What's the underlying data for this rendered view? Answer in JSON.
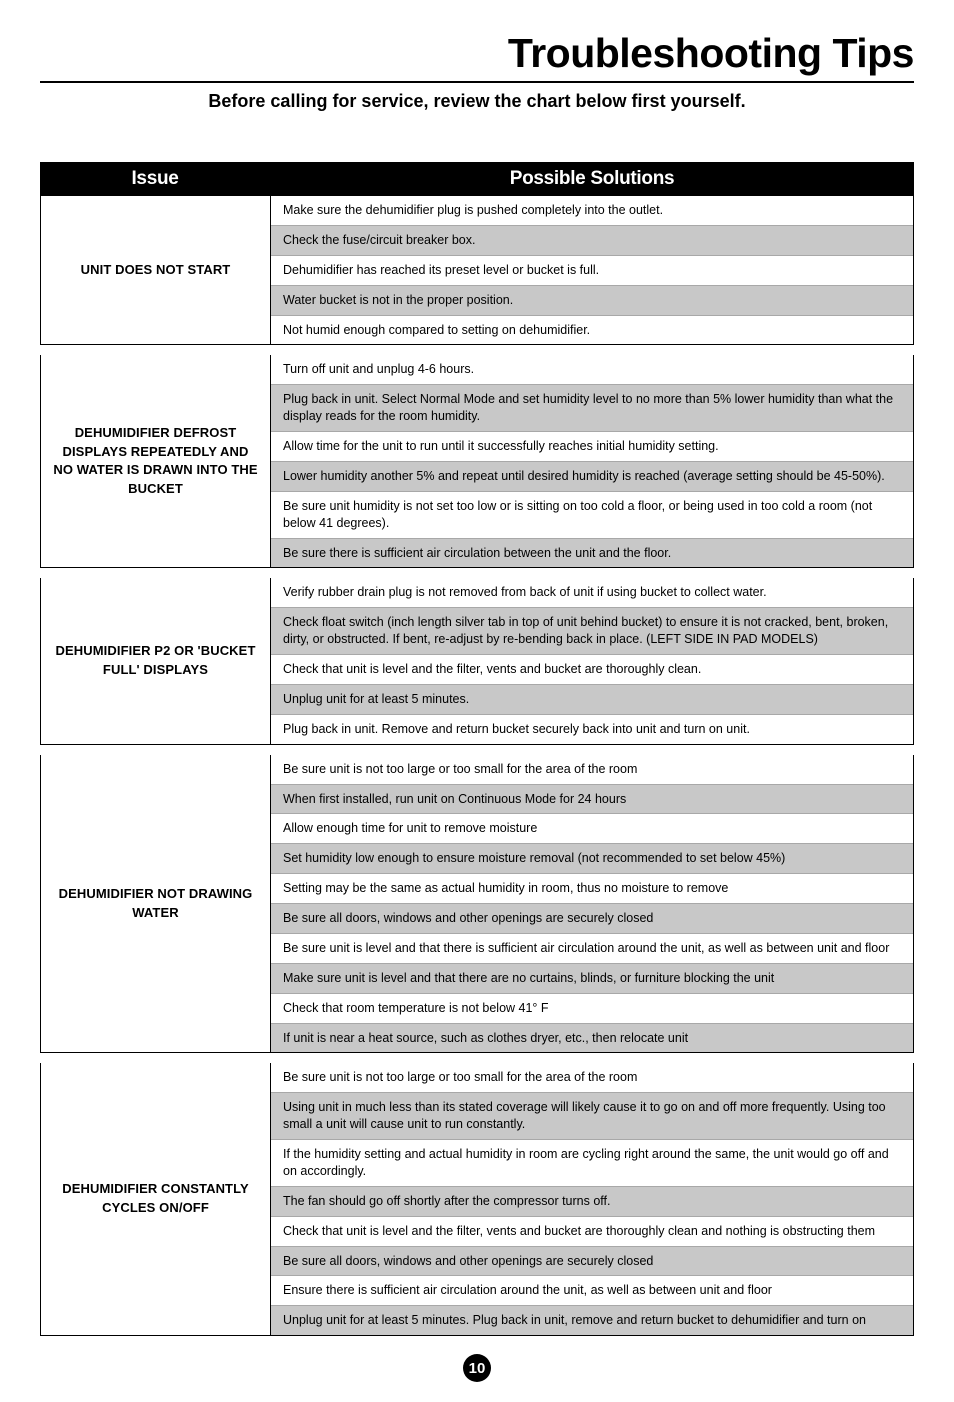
{
  "title": "Troubleshooting Tips",
  "subtitle": "Before calling for service, review the chart below first yourself.",
  "headers": {
    "issue": "Issue",
    "solutions": "Possible Solutions"
  },
  "page_number": "10",
  "colors": {
    "header_bg": "#000000",
    "header_text": "#ffffff",
    "row_alt_bg": "#c8c8c8",
    "border": "#000000",
    "row_border": "#a8a8a8"
  },
  "typography": {
    "title_fontsize": 41,
    "subtitle_fontsize": 18,
    "header_fontsize": 19,
    "issue_fontsize": 13,
    "solution_fontsize": 12.5
  },
  "sections": [
    {
      "issue": "UNIT DOES NOT START",
      "solutions": [
        "Make sure the dehumidifier plug is pushed completely into the outlet.",
        "Check the fuse/circuit breaker box.",
        "Dehumidifier has reached its preset level or bucket is full.",
        "Water bucket is not in the proper position.",
        "Not humid enough compared to setting on dehumidifier."
      ]
    },
    {
      "issue": "DEHUMIDIFIER DEFROST DISPLAYS REPEATEDLY AND NO WATER IS DRAWN INTO THE BUCKET",
      "solutions": [
        "Turn off unit and unplug 4-6 hours.",
        "Plug back in unit.  Select Normal Mode and set humidity level to no more than 5% lower humidity than what the display reads for the room humidity.",
        "Allow time for the unit to run until it successfully reaches initial humidity setting.",
        "Lower humidity another 5% and repeat until desired humidity is reached (average setting should be 45-50%).",
        "Be sure unit humidity is not set too low or is sitting on too cold a floor, or being used in too cold a room (not below 41 degrees).",
        "Be sure there is sufficient air circulation between the unit and the floor."
      ]
    },
    {
      "issue": "DEHUMIDIFIER P2 OR 'BUCKET FULL' DISPLAYS",
      "solutions": [
        "Verify rubber drain plug is not removed from back of unit if using bucket to collect water.",
        "Check float switch (inch length silver tab in top of unit behind bucket) to ensure it is not cracked, bent, broken, dirty, or obstructed. If bent, re-adjust by re-bending back in place.  (LEFT SIDE IN PAD MODELS)",
        "Check that unit is level and the filter, vents and bucket are thoroughly clean.",
        "Unplug unit for at least 5 minutes.",
        "Plug back in unit.  Remove and return bucket securely back into unit and turn on unit."
      ]
    },
    {
      "issue": "DEHUMIDIFIER NOT DRAWING WATER",
      "solutions": [
        "Be sure unit is not too large or too small for the area of the room",
        "When first installed, run unit on Continuous Mode for 24 hours",
        "Allow enough time for unit to remove moisture",
        "Set humidity low enough to ensure moisture removal (not recommended to set below 45%)",
        "Setting may be the same as actual humidity in room, thus no moisture to remove",
        "Be sure all doors, windows and other openings are securely closed",
        "Be sure unit is level and that there is sufficient air circulation around the unit, as well as between unit and floor",
        "Make sure unit is level and that there are no curtains, blinds, or furniture blocking the unit",
        "Check that room temperature is not below 41° F",
        "If unit is near a heat source, such as clothes dryer, etc., then relocate unit"
      ]
    },
    {
      "issue": "DEHUMIDIFIER CONSTANTLY CYCLES ON/OFF",
      "solutions": [
        "Be sure unit is not too large or too small for the area of the room",
        "Using unit in much less than its stated coverage will likely cause it to go on and off more frequently.  Using too small a unit will cause unit to run constantly.",
        "If the humidity setting and actual humidity in room are cycling right around the same, the unit would go off and on accordingly.",
        "The fan should go off shortly after the compressor turns off.",
        "Check that unit is level and the filter, vents and bucket are thoroughly clean and nothing is obstructing them",
        "Be sure all doors, windows and other openings are securely closed",
        "Ensure there is sufficient air circulation around the unit, as well as between unit and floor",
        "Unplug unit for at least 5 minutes.  Plug back in unit, remove and return bucket to dehumidifier and turn on"
      ]
    }
  ]
}
